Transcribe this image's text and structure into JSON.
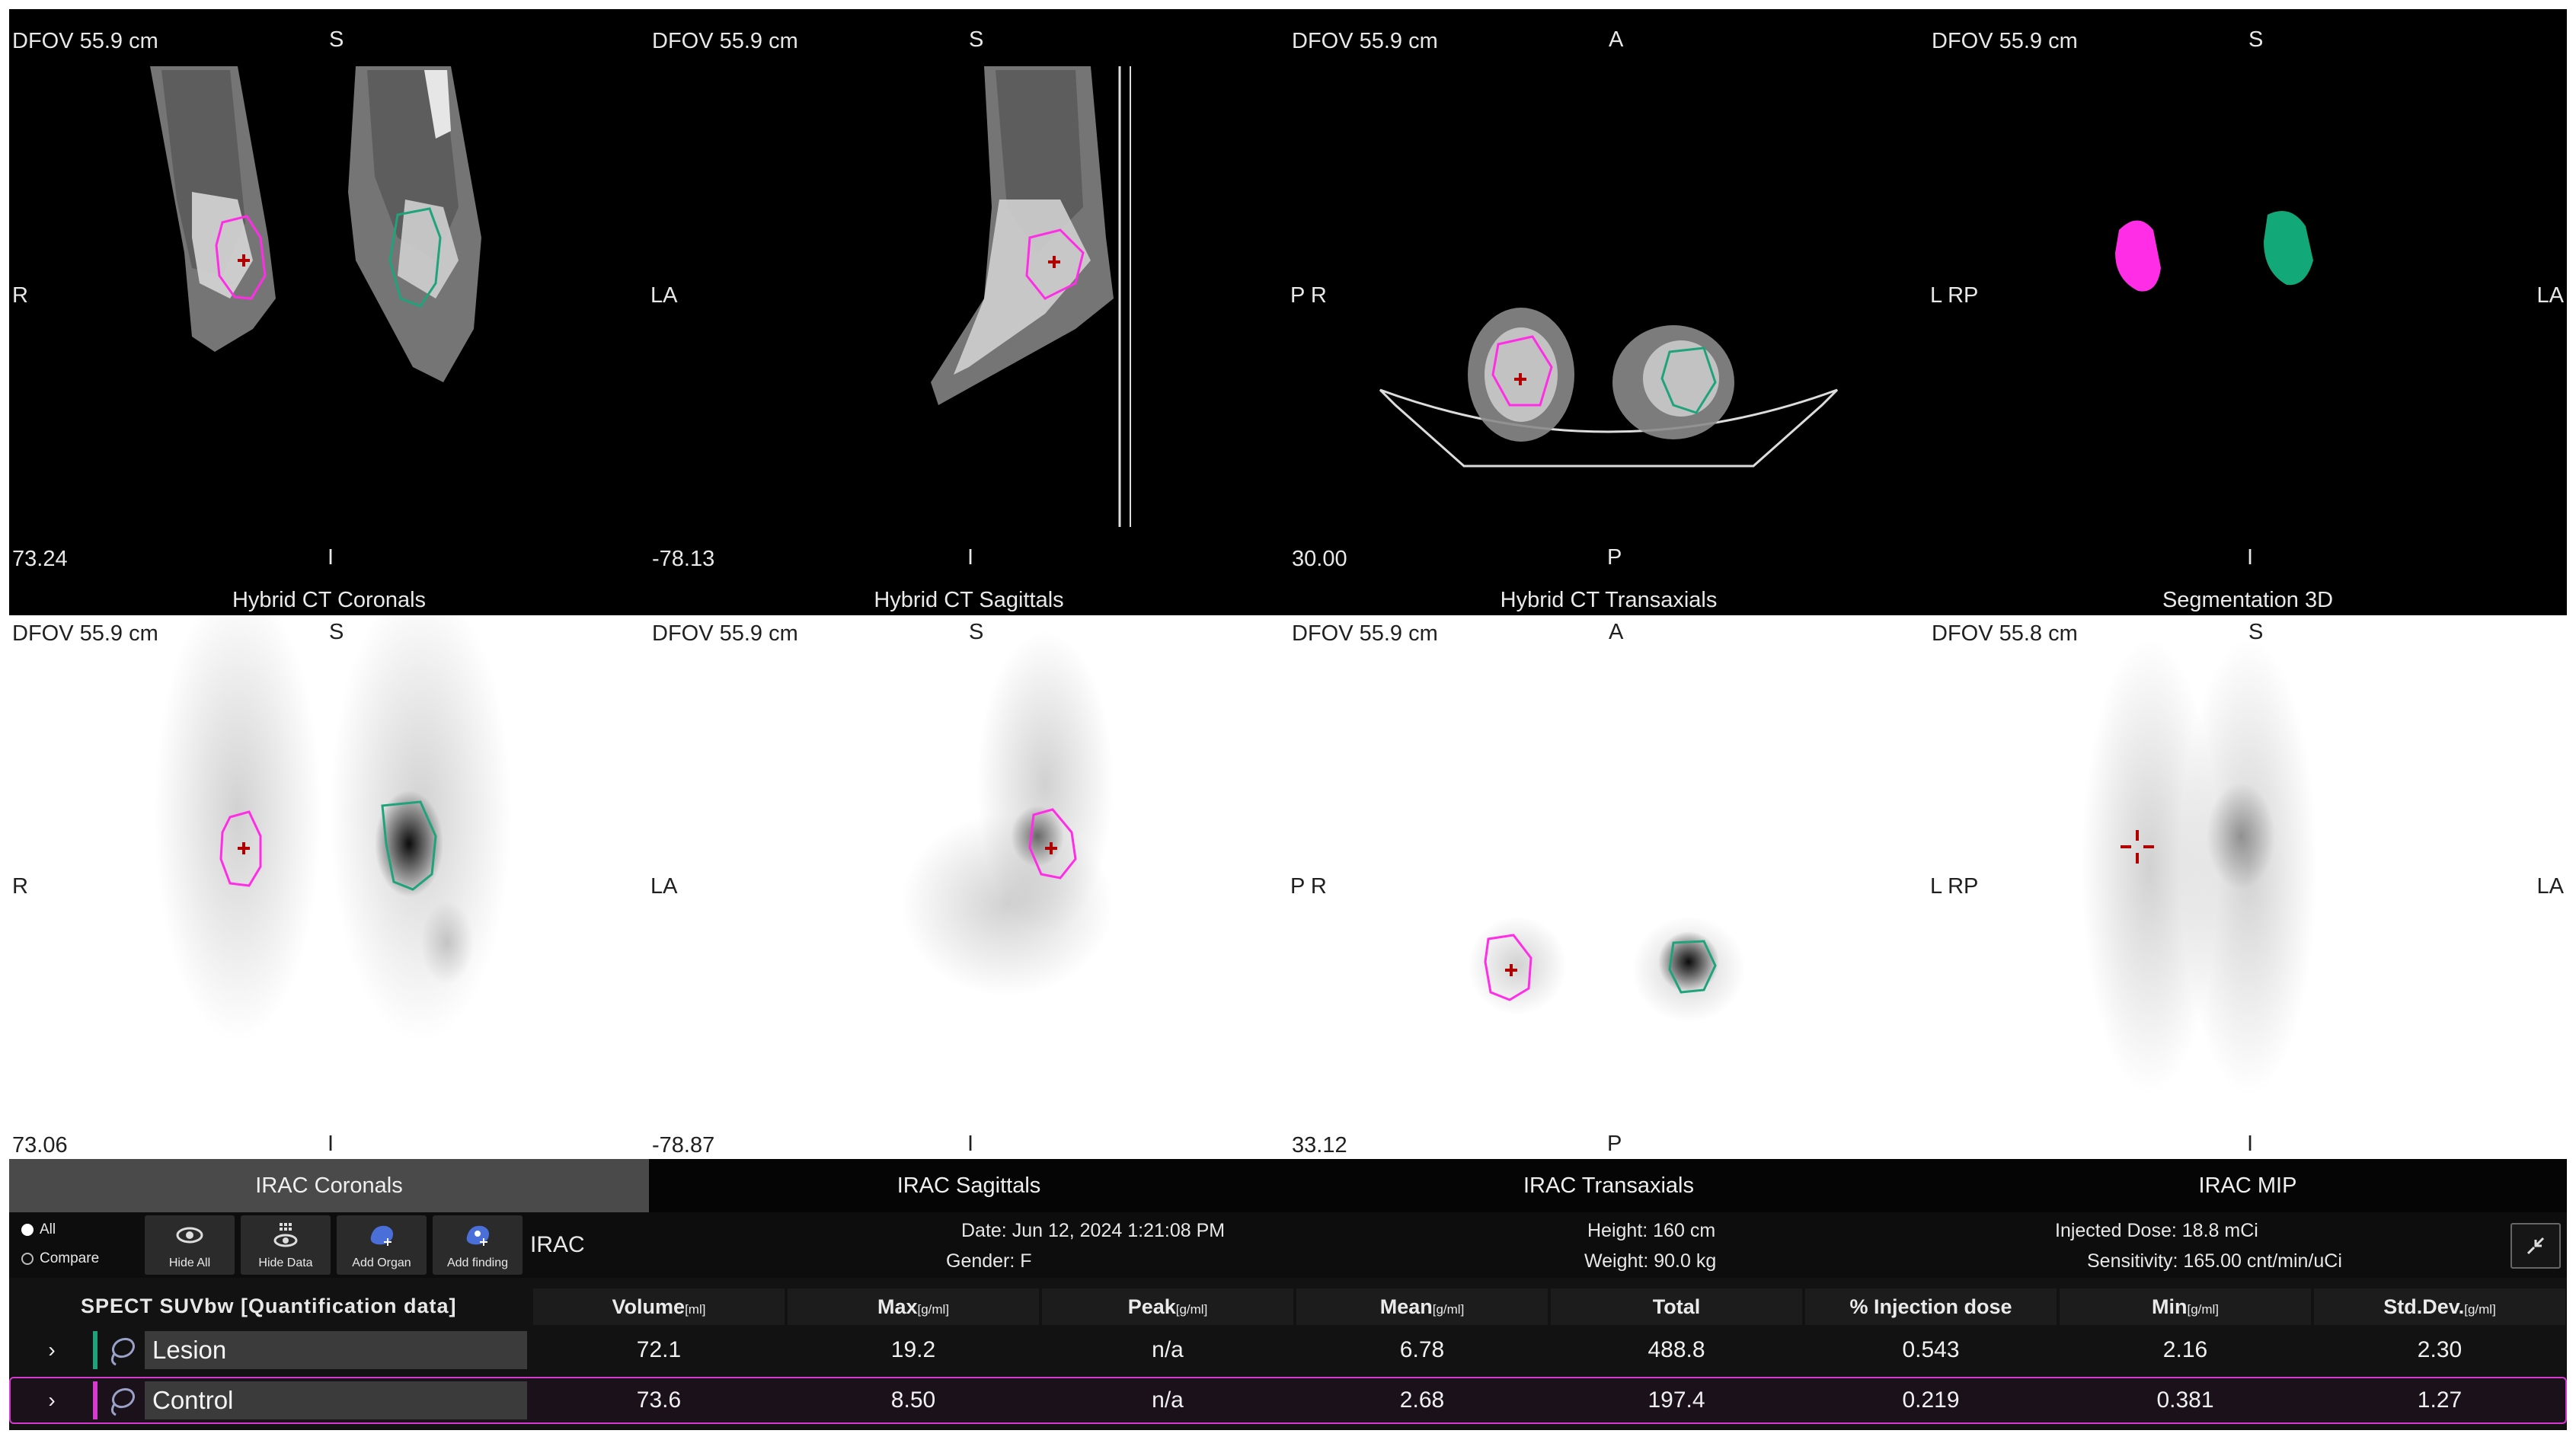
{
  "viewports": [
    {
      "id": "ct-coronal",
      "dfov": "DFOV 55.9 cm",
      "top": "S",
      "left": "R",
      "right": "",
      "bottom": "I",
      "slice": "73.24",
      "caption": "Hybrid CT Coronals"
    },
    {
      "id": "ct-sagittal",
      "dfov": "DFOV 55.9 cm",
      "top": "S",
      "left": "LA",
      "right": "",
      "bottom": "I",
      "slice": "-78.13",
      "caption": "Hybrid CT Sagittals"
    },
    {
      "id": "ct-transaxial",
      "dfov": "DFOV 55.9 cm",
      "top": "A",
      "left": "P R",
      "right": "",
      "bottom": "P",
      "slice": "30.00",
      "caption": "Hybrid CT Transaxials"
    },
    {
      "id": "seg-3d",
      "dfov": "DFOV 55.9 cm",
      "top": "S",
      "left": "L RP",
      "right": "LA",
      "bottom": "I",
      "slice": "",
      "caption": "Segmentation 3D"
    },
    {
      "id": "irac-coronal",
      "dfov": "DFOV 55.9 cm",
      "top": "S",
      "left": "R",
      "right": "",
      "bottom": "I",
      "slice": "73.06",
      "caption": ""
    },
    {
      "id": "irac-sagittal",
      "dfov": "DFOV 55.9 cm",
      "top": "S",
      "left": "LA",
      "right": "",
      "bottom": "I",
      "slice": "-78.87",
      "caption": ""
    },
    {
      "id": "irac-transaxial",
      "dfov": "DFOV 55.9 cm",
      "top": "A",
      "left": "P R",
      "right": "",
      "bottom": "P",
      "slice": "33.12",
      "caption": ""
    },
    {
      "id": "irac-mip",
      "dfov": "DFOV 55.8 cm",
      "top": "S",
      "left": "L RP",
      "right": "LA",
      "bottom": "I",
      "slice": "",
      "caption": ""
    }
  ],
  "tabs": [
    "IRAC Coronals",
    "IRAC Sagittals",
    "IRAC Transaxials",
    "IRAC MIP"
  ],
  "toolbar": {
    "radio_all": "All",
    "radio_compare": "Compare",
    "hide_all": "Hide All",
    "hide_data": "Hide Data",
    "add_organ": "Add Organ",
    "add_finding": "Add finding",
    "mode": "IRAC"
  },
  "info": {
    "date": "Date: Jun 12, 2024 1:21:08 PM",
    "gender": "Gender: F",
    "height": "Height: 160 cm",
    "weight": "Weight: 90.0 kg",
    "dose": "Injected Dose: 18.8 mCi",
    "sensitivity": "Sensitivity: 165.00 cnt/min/uCi"
  },
  "table": {
    "title": "SPECT SUVbw [Quantification data]",
    "columns": [
      {
        "label": "Volume",
        "unit": "[ml]"
      },
      {
        "label": "Max",
        "unit": "[g/ml]"
      },
      {
        "label": "Peak",
        "unit": "[g/ml]"
      },
      {
        "label": "Mean",
        "unit": "[g/ml]"
      },
      {
        "label": "Total",
        "unit": ""
      },
      {
        "label": "% Injection dose",
        "unit": ""
      },
      {
        "label": "Min",
        "unit": "[g/ml]"
      },
      {
        "label": "Std.Dev.",
        "unit": "[g/ml]"
      }
    ],
    "rows": [
      {
        "name": "Lesion",
        "color": "#1fa37a",
        "values": [
          "72.1",
          "19.2",
          "n/a",
          "6.78",
          "488.8",
          "0.543",
          "2.16",
          "2.30"
        ]
      },
      {
        "name": "Control",
        "color": "#d63ad0",
        "values": [
          "73.6",
          "8.50",
          "n/a",
          "2.68",
          "197.4",
          "0.219",
          "0.381",
          "1.27"
        ]
      }
    ]
  },
  "colors": {
    "lesion": "#1fa37a",
    "control": "#ff2ee6",
    "row_highlight": "#d63ad0"
  }
}
